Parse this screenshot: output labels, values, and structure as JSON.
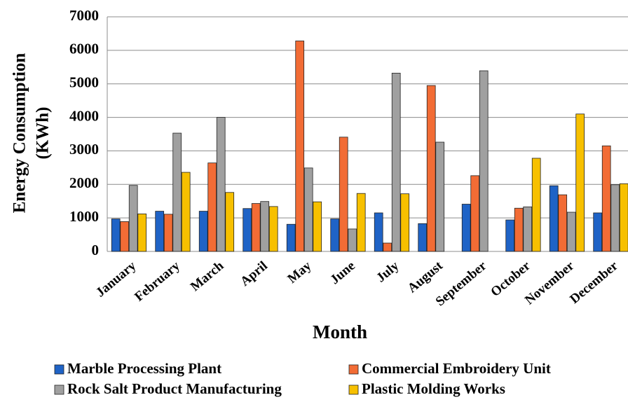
{
  "chart_data": {
    "type": "bar",
    "x_label": "Month",
    "y_label": [
      "Energy Consumption",
      "(KWh)"
    ],
    "categories": [
      "January",
      "February",
      "March",
      "April",
      "May",
      "June",
      "July",
      "August",
      "September",
      "October",
      "November",
      "December"
    ],
    "series": [
      {
        "name": "Marble Processing Plant",
        "color": "#1f63c6",
        "values": [
          970,
          1200,
          1200,
          1280,
          810,
          970,
          1150,
          830,
          1410,
          940,
          1960,
          1150
        ]
      },
      {
        "name": "Commercial Embroidery Unit",
        "color": "#f26c35",
        "values": [
          890,
          1110,
          2640,
          1430,
          6280,
          3410,
          250,
          4950,
          2260,
          1290,
          1690,
          3150
        ]
      },
      {
        "name": "Rock Salt Product Manufacturing",
        "color": "#a0a0a0",
        "values": [
          1970,
          3530,
          4000,
          1490,
          2490,
          670,
          5320,
          3260,
          5390,
          1330,
          1170,
          1990
        ]
      },
      {
        "name": "Plastic Molding Works",
        "color": "#f7c000",
        "values": [
          1120,
          2360,
          1760,
          1340,
          1480,
          1730,
          1720,
          null,
          null,
          2780,
          4100,
          2020
        ]
      }
    ],
    "ylim": [
      0,
      7000
    ],
    "yticks": [
      0,
      1000,
      2000,
      3000,
      4000,
      5000,
      6000,
      7000
    ],
    "grid": true
  }
}
